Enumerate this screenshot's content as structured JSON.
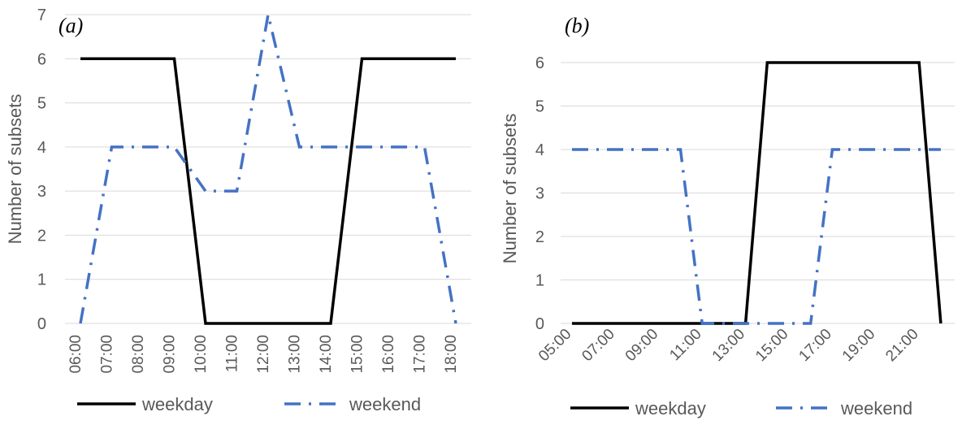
{
  "colors": {
    "weekday": "#000000",
    "weekend": "#4472C4",
    "grid": "#D9D9D9",
    "text": "#595959"
  },
  "chart_data": [
    {
      "type": "line",
      "panel_label": "(a)",
      "ylabel": "Number of subsets",
      "ylim": [
        0,
        7
      ],
      "yticks": [
        0,
        1,
        2,
        3,
        4,
        5,
        6,
        7
      ],
      "grid": "horizontal",
      "legend": "bottom",
      "categories": [
        "06:00",
        "07:00",
        "08:00",
        "09:00",
        "10:00",
        "11:00",
        "12:00",
        "13:00",
        "14:00",
        "15:00",
        "16:00",
        "17:00",
        "18:00"
      ],
      "series": [
        {
          "name": "weekday",
          "style": "solid",
          "values": [
            6,
            6,
            6,
            6,
            0,
            0,
            0,
            0,
            0,
            6,
            6,
            6,
            6
          ]
        },
        {
          "name": "weekend",
          "style": "dash-dot",
          "values": [
            0,
            4,
            4,
            4,
            3,
            3,
            7,
            4,
            4,
            4,
            4,
            4,
            0
          ]
        }
      ]
    },
    {
      "type": "line",
      "panel_label": "(b)",
      "ylabel": "Number of subsets",
      "ylim": [
        0,
        6
      ],
      "yticks": [
        0,
        1,
        2,
        3,
        4,
        5,
        6
      ],
      "grid": "horizontal",
      "legend": "bottom",
      "categories": [
        "05:00",
        "06:00",
        "07:00",
        "08:00",
        "09:00",
        "10:00",
        "11:00",
        "12:00",
        "13:00",
        "14:00",
        "15:00",
        "16:00",
        "17:00",
        "18:00",
        "19:00",
        "20:00",
        "21:00",
        "22:00"
      ],
      "tick_labels_shown": [
        "05:00",
        "07:00",
        "09:00",
        "11:00",
        "13:00",
        "15:00",
        "17:00",
        "19:00",
        "21:00"
      ],
      "series": [
        {
          "name": "weekday",
          "style": "solid",
          "values": [
            0,
            0,
            0,
            0,
            0,
            0,
            0,
            0,
            0,
            6,
            6,
            6,
            6,
            6,
            6,
            6,
            6,
            0
          ]
        },
        {
          "name": "weekend",
          "style": "dash-dot",
          "values": [
            4,
            4,
            4,
            4,
            4,
            4,
            0,
            0,
            0,
            0,
            0,
            0,
            4,
            4,
            4,
            4,
            4,
            4
          ]
        }
      ]
    }
  ]
}
